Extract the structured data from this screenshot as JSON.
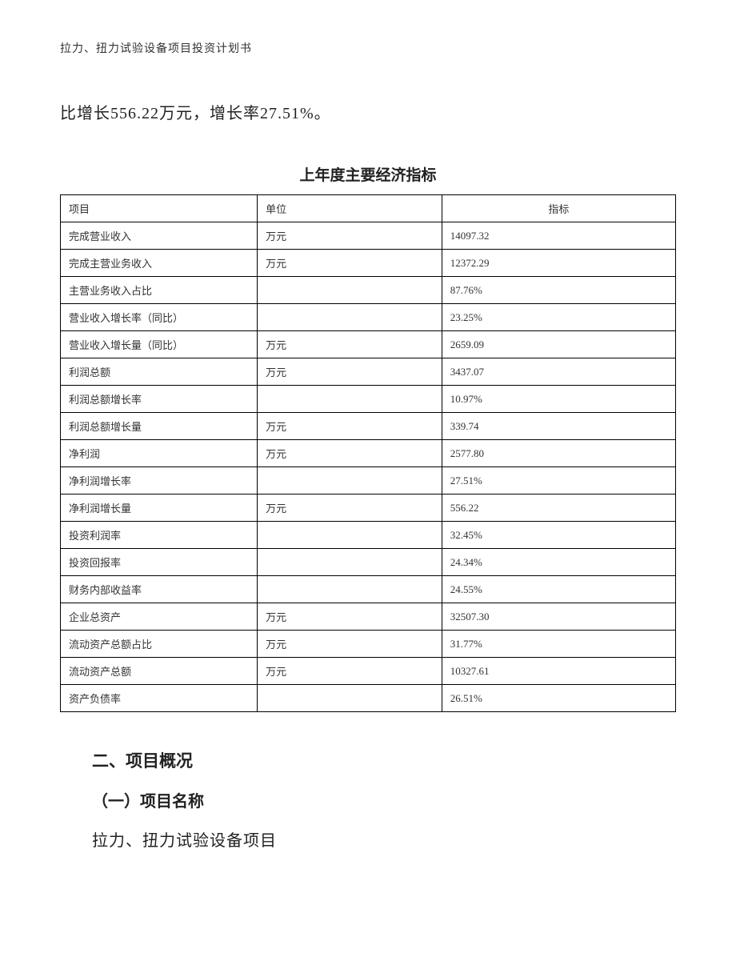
{
  "header": {
    "text": "拉力、扭力试验设备项目投资计划书"
  },
  "intro": {
    "text": "比增长556.22万元，增长率27.51%。"
  },
  "table": {
    "title": "上年度主要经济指标",
    "headers": {
      "item": "项目",
      "unit": "单位",
      "value": "指标"
    },
    "rows": [
      {
        "item": "完成营业收入",
        "unit": "万元",
        "value": "14097.32"
      },
      {
        "item": "完成主营业务收入",
        "unit": "万元",
        "value": "12372.29"
      },
      {
        "item": "主营业务收入占比",
        "unit": "",
        "value": "87.76%"
      },
      {
        "item": "营业收入增长率（同比）",
        "unit": "",
        "value": "23.25%"
      },
      {
        "item": "营业收入增长量（同比）",
        "unit": "万元",
        "value": "2659.09"
      },
      {
        "item": "利润总额",
        "unit": "万元",
        "value": "3437.07"
      },
      {
        "item": "利润总额增长率",
        "unit": "",
        "value": "10.97%"
      },
      {
        "item": "利润总额增长量",
        "unit": "万元",
        "value": "339.74"
      },
      {
        "item": "净利润",
        "unit": "万元",
        "value": "2577.80"
      },
      {
        "item": "净利润增长率",
        "unit": "",
        "value": "27.51%"
      },
      {
        "item": "净利润增长量",
        "unit": "万元",
        "value": "556.22"
      },
      {
        "item": "投资利润率",
        "unit": "",
        "value": "32.45%"
      },
      {
        "item": "投资回报率",
        "unit": "",
        "value": "24.34%"
      },
      {
        "item": "财务内部收益率",
        "unit": "",
        "value": "24.55%"
      },
      {
        "item": "企业总资产",
        "unit": "万元",
        "value": "32507.30"
      },
      {
        "item": "流动资产总额占比",
        "unit": "万元",
        "value": "31.77%"
      },
      {
        "item": "流动资产总额",
        "unit": "万元",
        "value": "10327.61"
      },
      {
        "item": "资产负债率",
        "unit": "",
        "value": "26.51%"
      }
    ]
  },
  "section": {
    "heading": "二、项目概况",
    "subsection": "（一）项目名称",
    "project_name": "拉力、扭力试验设备项目"
  }
}
